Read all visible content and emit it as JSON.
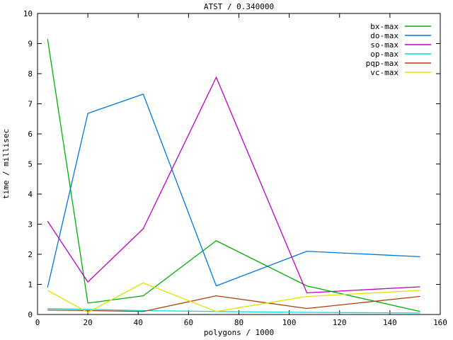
{
  "window": {
    "background": "#ffffff",
    "foreground": "#000000"
  },
  "chart_data": {
    "type": "line",
    "title": "ATST / 0.340000",
    "xlabel": "polygons / 1000",
    "ylabel": "time / millisec",
    "xlim": [
      0,
      160
    ],
    "ylim": [
      0,
      10
    ],
    "xticks": [
      0,
      20,
      40,
      60,
      80,
      100,
      120,
      140,
      160
    ],
    "yticks": [
      0,
      1,
      2,
      3,
      4,
      5,
      6,
      7,
      8,
      9,
      10
    ],
    "grid": false,
    "legend_position": "top-right-inside",
    "x": [
      4,
      20,
      42,
      71,
      107,
      152
    ],
    "series": [
      {
        "name": "bx-max",
        "color": "#00b000",
        "values": [
          9.15,
          0.38,
          0.62,
          2.45,
          0.95,
          0.1
        ]
      },
      {
        "name": "do-max",
        "color": "#0077dd",
        "values": [
          0.9,
          6.68,
          7.32,
          0.95,
          2.1,
          1.92
        ]
      },
      {
        "name": "so-max",
        "color": "#c000c0",
        "values": [
          3.1,
          1.08,
          2.85,
          7.88,
          0.72,
          0.92
        ]
      },
      {
        "name": "op-max",
        "color": "#00dddd",
        "values": [
          0.2,
          0.17,
          0.13,
          0.1,
          0.07,
          0.05
        ]
      },
      {
        "name": "pqp-max",
        "color": "#b04010",
        "values": [
          0.15,
          0.13,
          0.1,
          0.62,
          0.2,
          0.6
        ]
      },
      {
        "name": "vc-max",
        "color": "#e2e200",
        "values": [
          0.8,
          0.07,
          1.05,
          0.1,
          0.6,
          0.8
        ]
      }
    ]
  }
}
